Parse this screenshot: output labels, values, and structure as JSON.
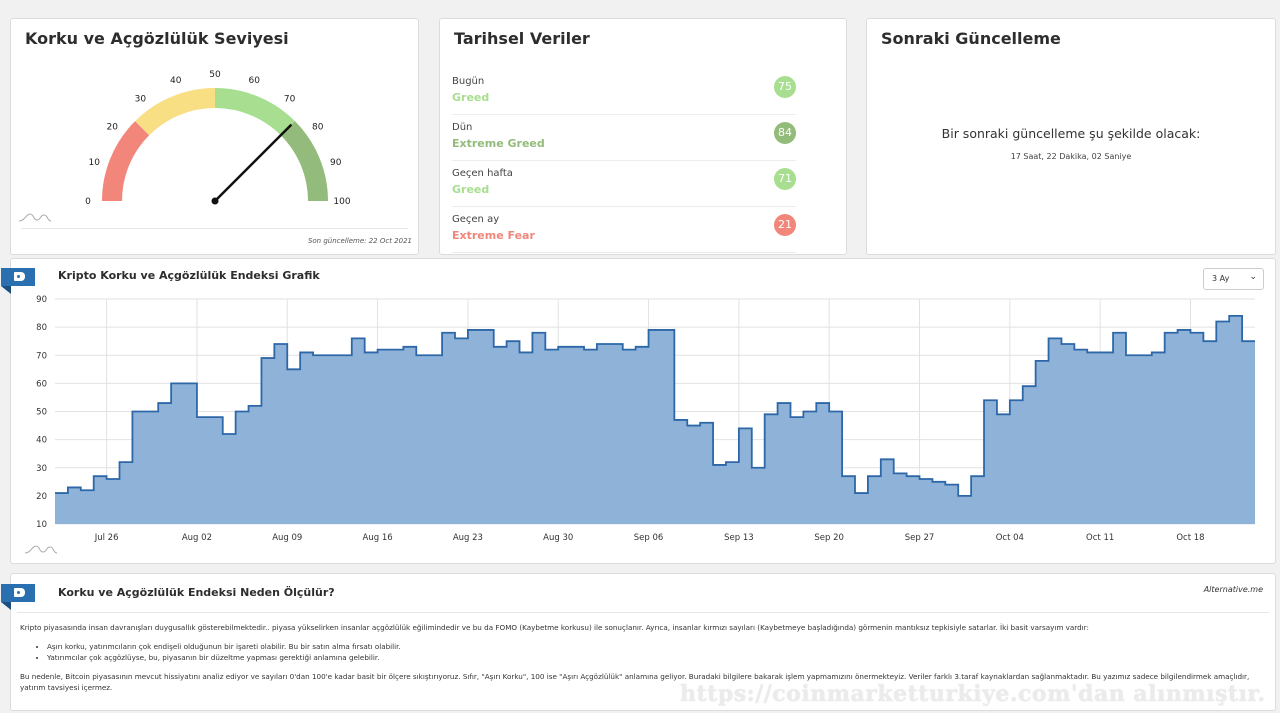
{
  "gauge": {
    "title": "Korku ve Açgözlülük Seviyesi",
    "value": 75,
    "ticks": [
      "0",
      "10",
      "20",
      "30",
      "40",
      "50",
      "60",
      "70",
      "80",
      "90",
      "100"
    ],
    "last_update": "Son güncelleme: 22 Oct 2021",
    "colors": [
      "#f2867b",
      "#f8df83",
      "#a7de8f",
      "#93bb7b"
    ]
  },
  "historical": {
    "title": "Tarihsel Veriler",
    "rows": [
      {
        "label": "Bugün",
        "class": "Greed",
        "value": "75",
        "color": "#a7de8f"
      },
      {
        "label": "Dün",
        "class": "Extreme Greed",
        "value": "84",
        "color": "#93bb7b"
      },
      {
        "label": "Geçen hafta",
        "class": "Greed",
        "value": "71",
        "color": "#a7de8f"
      },
      {
        "label": "Geçen ay",
        "class": "Extreme Fear",
        "value": "21",
        "color": "#f2867b"
      }
    ]
  },
  "next_update": {
    "title": "Sonraki Güncelleme",
    "text": "Bir sonraki güncelleme şu şekilde olacak:",
    "countdown": "17 Saat, 22 Dakika, 02 Saniye"
  },
  "chart_card": {
    "title": "Kripto Korku ve Açgözlülük Endeksi Grafik",
    "range": "3 Ay"
  },
  "chart_data": {
    "type": "area",
    "ylim": [
      10,
      90
    ],
    "yticks": [
      10,
      20,
      30,
      40,
      50,
      60,
      70,
      80,
      90
    ],
    "xticks": [
      {
        "label": "Jul 26",
        "day": 4
      },
      {
        "label": "Aug 02",
        "day": 11
      },
      {
        "label": "Aug 09",
        "day": 18
      },
      {
        "label": "Aug 16",
        "day": 25
      },
      {
        "label": "Aug 23",
        "day": 32
      },
      {
        "label": "Aug 30",
        "day": 39
      },
      {
        "label": "Sep 06",
        "day": 46
      },
      {
        "label": "Sep 13",
        "day": 53
      },
      {
        "label": "Sep 20",
        "day": 60
      },
      {
        "label": "Sep 27",
        "day": 67
      },
      {
        "label": "Oct 04",
        "day": 74
      },
      {
        "label": "Oct 11",
        "day": 81
      },
      {
        "label": "Oct 18",
        "day": 88
      }
    ],
    "values": [
      21,
      23,
      22,
      27,
      26,
      32,
      50,
      50,
      53,
      60,
      60,
      48,
      48,
      42,
      50,
      52,
      69,
      74,
      65,
      71,
      70,
      70,
      70,
      76,
      71,
      72,
      72,
      73,
      70,
      70,
      78,
      76,
      79,
      79,
      73,
      75,
      71,
      78,
      72,
      73,
      73,
      72,
      74,
      74,
      72,
      73,
      79,
      79,
      47,
      45,
      46,
      31,
      32,
      44,
      30,
      49,
      53,
      48,
      50,
      53,
      50,
      27,
      21,
      27,
      33,
      28,
      27,
      26,
      25,
      24,
      20,
      27,
      54,
      49,
      54,
      59,
      68,
      76,
      74,
      72,
      71,
      71,
      78,
      70,
      70,
      71,
      78,
      79,
      78,
      75,
      82,
      84,
      75
    ],
    "color": "#2d67a7",
    "fill": "#8fb3d8"
  },
  "info": {
    "title": "Korku ve Açgözlülük Endeksi Neden Ölçülür?",
    "source": "Alternative.me",
    "p1": "Kripto piyasasında insan davranışları duygusallık gösterebilmektedir.. piyasa yükselirken insanlar açgözlülük eğilimindedir ve bu da FOMO (Kaybetme korkusu) ile sonuçlanır. Ayrıca, insanlar kırmızı sayıları (Kaybetmeye başladığında) görmenin mantıksız tepkisiyle satarlar. İki basit varsayım vardır:",
    "b1": "Aşırı korku, yatırımcıların çok endişeli olduğunun bir işareti olabilir. Bu bir satın alma fırsatı olabilir.",
    "b2": "Yatırımcılar çok açgözlüyse, bu, piyasanın bir düzeltme yapması gerektiği anlamına gelebilir.",
    "p2": "Bu nedenle, Bitcoin piyasasının mevcut hissiyatını analiz ediyor ve sayıları 0'dan 100'e kadar basit bir ölçere sıkıştırıyoruz. Sıfır, \"Aşırı Korku\", 100 ise \"Aşırı Açgözlülük\" anlamına geliyor. Buradaki bilgilere bakarak işlem yapmamızını önermekteyiz. Veriler farklı 3.taraf kaynaklardan sağlanmaktadır. Bu yazımız sadece bilgilendirmek amaçlıdır, yatırım tavsiyesi içermez."
  },
  "watermark": "https://coinmarketturkiye.com'dan alınmıştır."
}
